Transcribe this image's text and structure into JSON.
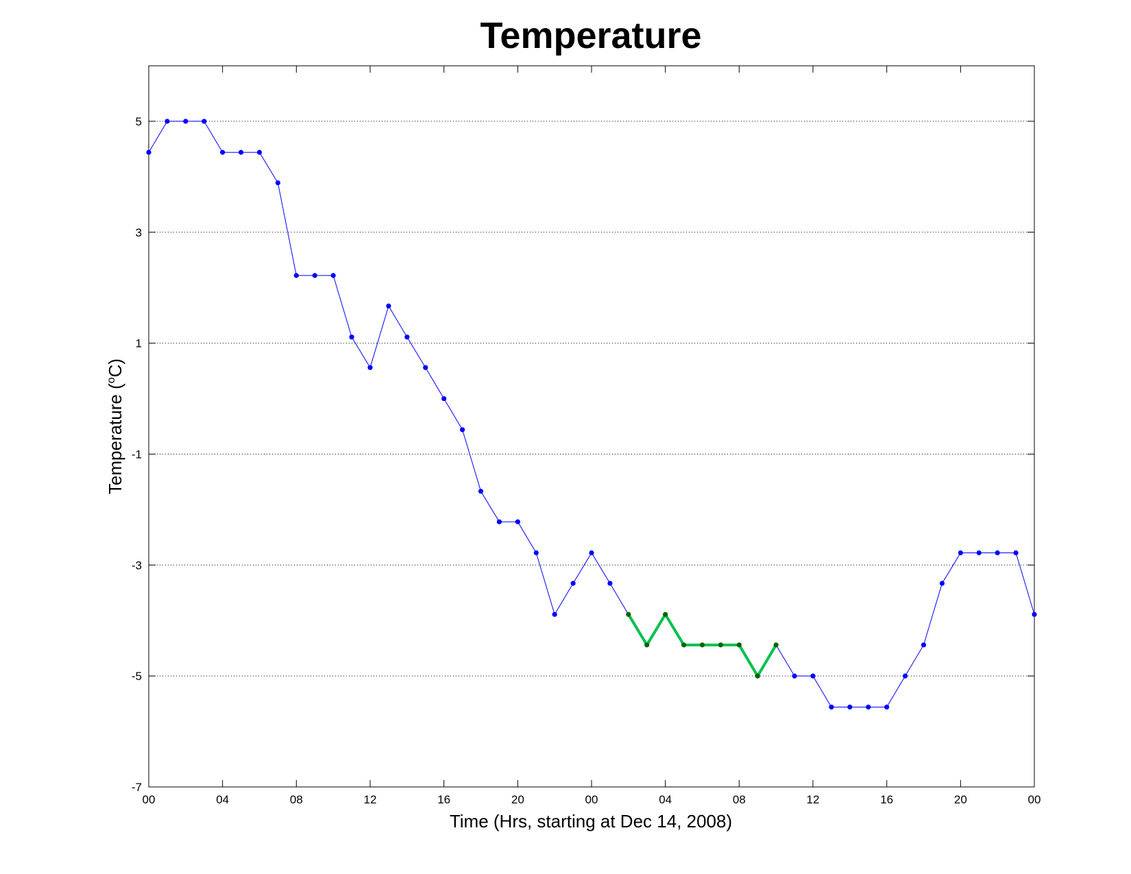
{
  "chart_data": {
    "type": "line",
    "title": "Temperature",
    "xlabel": "Time (Hrs, starting at Dec 14, 2008)",
    "ylabel_main": "Temperature (",
    "ylabel_unit": "o",
    "ylabel_end": "C)",
    "x_hours_range": [
      0,
      48
    ],
    "ylim": [
      -7,
      6
    ],
    "x_ticks": [
      {
        "hour": 0,
        "label": "00"
      },
      {
        "hour": 4,
        "label": "04"
      },
      {
        "hour": 8,
        "label": "08"
      },
      {
        "hour": 12,
        "label": "12"
      },
      {
        "hour": 16,
        "label": "16"
      },
      {
        "hour": 20,
        "label": "20"
      },
      {
        "hour": 24,
        "label": "00"
      },
      {
        "hour": 28,
        "label": "04"
      },
      {
        "hour": 32,
        "label": "08"
      },
      {
        "hour": 36,
        "label": "12"
      },
      {
        "hour": 40,
        "label": "16"
      },
      {
        "hour": 44,
        "label": "20"
      },
      {
        "hour": 48,
        "label": "00"
      }
    ],
    "y_ticks": [
      {
        "value": 5,
        "label": "5"
      },
      {
        "value": 3,
        "label": "3"
      },
      {
        "value": 1,
        "label": "1"
      },
      {
        "value": -1,
        "label": "-1"
      },
      {
        "value": -3,
        "label": "-3"
      },
      {
        "value": -5,
        "label": "-5"
      },
      {
        "value": -7,
        "label": "-7"
      }
    ],
    "grid": "horizontal-dotted",
    "colors": {
      "main": "#0000ff",
      "highlight": "#00c050",
      "highlight_marker": "#006400"
    },
    "series": [
      {
        "x": [
          0,
          1,
          2,
          3,
          4,
          5,
          6,
          7,
          8,
          9,
          10,
          11,
          12,
          13,
          14,
          15,
          16,
          17,
          18,
          19,
          20,
          21,
          22,
          23,
          24,
          25,
          26,
          27,
          28,
          29,
          30,
          31,
          32,
          33,
          34,
          35,
          36,
          37,
          38,
          39,
          40,
          41,
          42,
          43,
          44,
          45,
          46,
          47,
          48
        ],
        "y": [
          4.44,
          5.0,
          5.0,
          5.0,
          4.44,
          4.44,
          4.44,
          3.89,
          2.22,
          2.22,
          2.22,
          1.11,
          0.56,
          1.67,
          1.11,
          0.56,
          0.0,
          -0.56,
          -1.67,
          -2.22,
          -2.22,
          -2.78,
          -3.89,
          -3.33,
          -2.78,
          -3.33,
          -3.89,
          -4.44,
          -3.89,
          -4.44,
          -4.44,
          -4.44,
          -4.44,
          -5.0,
          -4.44,
          -5.0,
          -5.0,
          -5.56,
          -5.56,
          -5.56,
          -5.56,
          -5.0,
          -4.44,
          -3.33,
          -2.78,
          -2.78,
          -2.78,
          -2.78,
          -3.89
        ]
      },
      {
        "x": [
          26,
          27,
          28,
          29,
          30,
          31,
          32,
          33,
          34
        ],
        "y": [
          -3.89,
          -4.44,
          -3.89,
          -4.44,
          -4.44,
          -4.44,
          -4.44,
          -5.0,
          -4.44
        ]
      }
    ]
  }
}
